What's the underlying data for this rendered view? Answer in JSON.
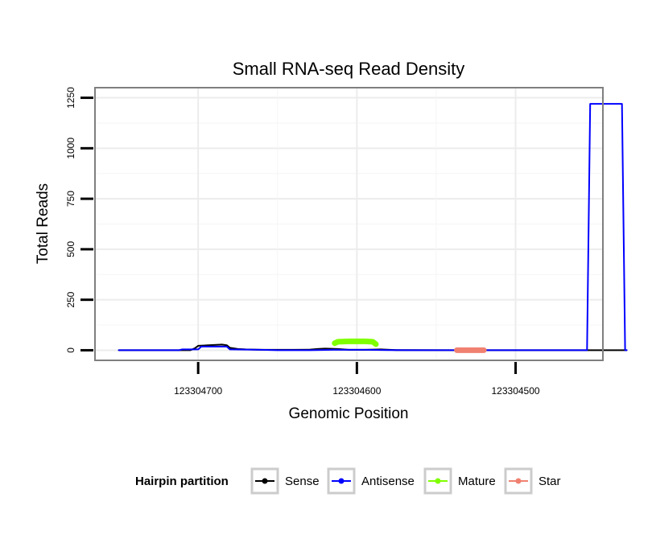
{
  "chart_data": {
    "type": "line",
    "title": "Small RNA-seq Read Density",
    "xlabel": "Genomic Position",
    "ylabel": "Total Reads",
    "x_reversed": true,
    "xlim": [
      123304765,
      123304445
    ],
    "ylim": [
      -50,
      1300
    ],
    "x_ticks": [
      {
        "value": 123304700,
        "label": "123304700"
      },
      {
        "value": 123304600,
        "label": "123304600"
      },
      {
        "value": 123304500,
        "label": "123304500"
      }
    ],
    "y_ticks": [
      {
        "value": 0,
        "label": "0"
      },
      {
        "value": 250,
        "label": "250"
      },
      {
        "value": 500,
        "label": "500"
      },
      {
        "value": 750,
        "label": "750"
      },
      {
        "value": 1000,
        "label": "1000"
      },
      {
        "value": 1250,
        "label": "1250"
      }
    ],
    "grid": true,
    "legend": {
      "title": "Hairpin partition",
      "position": "bottom",
      "entries": [
        {
          "name": "Sense",
          "color": "#000000"
        },
        {
          "name": "Antisense",
          "color": "#0000ff"
        },
        {
          "name": "Mature",
          "color": "#7fff00"
        },
        {
          "name": "Star",
          "color": "#f08070"
        }
      ]
    },
    "series": [
      {
        "name": "Sense",
        "color": "#000000",
        "width": 2,
        "points": [
          [
            123304750,
            0
          ],
          [
            123304705,
            0
          ],
          [
            123304702,
            10
          ],
          [
            123304700,
            22
          ],
          [
            123304695,
            24
          ],
          [
            123304690,
            26
          ],
          [
            123304685,
            28
          ],
          [
            123304682,
            25
          ],
          [
            123304680,
            12
          ],
          [
            123304675,
            6
          ],
          [
            123304670,
            4
          ],
          [
            123304660,
            2
          ],
          [
            123304640,
            2
          ],
          [
            123304630,
            3
          ],
          [
            123304625,
            6
          ],
          [
            123304620,
            8
          ],
          [
            123304612,
            6
          ],
          [
            123304605,
            2
          ],
          [
            123304595,
            2
          ],
          [
            123304585,
            4
          ],
          [
            123304575,
            1
          ],
          [
            123304540,
            0
          ],
          [
            123304430,
            0
          ]
        ]
      },
      {
        "name": "Antisense",
        "color": "#0000ff",
        "width": 2,
        "points": [
          [
            123304750,
            0
          ],
          [
            123304712,
            0
          ],
          [
            123304710,
            4
          ],
          [
            123304700,
            4
          ],
          [
            123304698,
            18
          ],
          [
            123304690,
            18
          ],
          [
            123304682,
            18
          ],
          [
            123304680,
            4
          ],
          [
            123304660,
            2
          ],
          [
            123304650,
            0
          ],
          [
            123304630,
            0
          ],
          [
            123304615,
            2
          ],
          [
            123304595,
            2
          ],
          [
            123304580,
            1
          ],
          [
            123304560,
            0
          ],
          [
            123304455,
            0
          ],
          [
            123304453,
            1220
          ],
          [
            123304433,
            1220
          ],
          [
            123304431,
            0
          ],
          [
            123304430,
            0
          ]
        ]
      },
      {
        "name": "Mature",
        "color": "#7fff00",
        "width": 7,
        "points": [
          [
            123304614,
            35
          ],
          [
            123304612,
            42
          ],
          [
            123304605,
            44
          ],
          [
            123304595,
            44
          ],
          [
            123304590,
            42
          ],
          [
            123304588,
            30
          ]
        ]
      },
      {
        "name": "Star",
        "color": "#f08070",
        "width": 7,
        "points": [
          [
            123304537,
            0
          ],
          [
            123304520,
            0
          ]
        ]
      }
    ]
  }
}
